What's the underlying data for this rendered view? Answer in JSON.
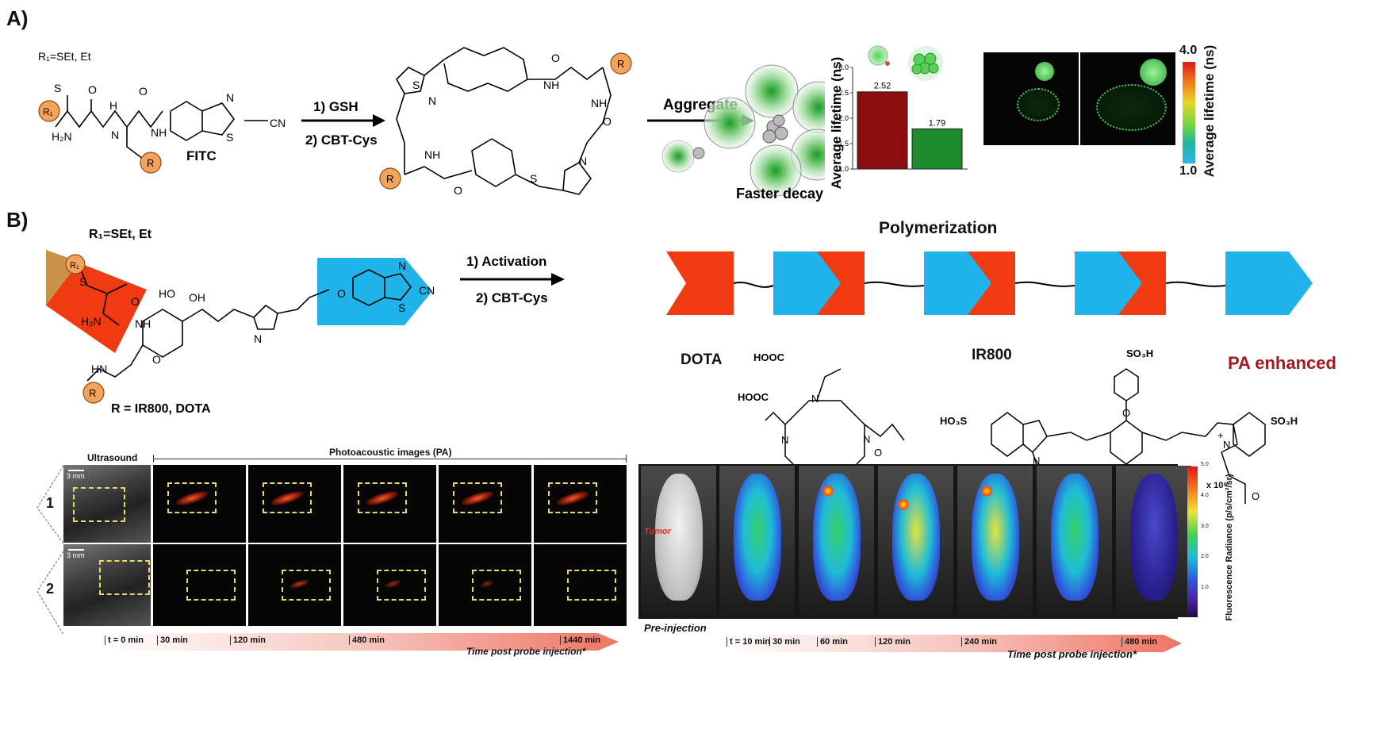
{
  "panelA": {
    "label": "A)",
    "r1_def": "R₁=SEt, Et",
    "fitc": "FITC",
    "step1": "1) GSH",
    "step2": "2) CBT-Cys",
    "aggregate": "Aggregate",
    "faster_decay": "Faster decay",
    "bar_ylabel": "Average lifetime (ns)",
    "colorbar_label": "Average lifetime (ns)",
    "colorbar_max": "4.0",
    "colorbar_min": "1.0",
    "atoms": {
      "R": "R",
      "R1": "R₁",
      "S": "S",
      "N": "N",
      "H": "H",
      "O": "O",
      "NH": "NH",
      "HN": "HN",
      "H2N": "H₂N",
      "CN": "CN"
    }
  },
  "chart_data": {
    "type": "bar",
    "categories": [
      "monomer",
      "aggregate"
    ],
    "values": [
      2.52,
      1.79
    ],
    "value_labels": [
      "2.52",
      "1.79"
    ],
    "colors": [
      "#8b0d0d",
      "#1d8a2b"
    ],
    "ylabel": "Average lifetime (ns)",
    "ylim": [
      1.0,
      3.0
    ],
    "yticks": [
      "1.0",
      "1.5",
      "2.0",
      "2.5",
      "3.0"
    ]
  },
  "panelB": {
    "label": "B)",
    "r1_def": "R₁=SEt, Et",
    "r_def": "R = IR800, DOTA",
    "step1": "1) Activation",
    "step2": "2) CBT-Cys",
    "polymerization": "Polymerization",
    "dota": "DOTA",
    "ir800": "IR800",
    "pa_enhanced": "PA enhanced",
    "atoms": {
      "HOOC": "HOOC",
      "SO3H": "SO₃H",
      "HO3S": "HO₃S",
      "HO": "HO",
      "OH": "OH",
      "H2N": "H₂N",
      "HN": "HN",
      "NH": "NH",
      "N": "N",
      "O": "O",
      "S": "S",
      "CN": "CN",
      "plus": "+"
    },
    "ultrasound": "Ultrasound",
    "pa_images": "Photoacoustic images (PA)",
    "scale": "3 mm",
    "row1": "1",
    "row2": "2",
    "pa_times": [
      "t = 0 min",
      "30 min",
      "120 min",
      "480 min",
      "1440 min"
    ],
    "pa_axis": "Time post probe injection*",
    "pre_injection": "Pre-injection",
    "tumor": "Tumor",
    "fl_times": [
      "t = 10 min",
      "30 min",
      "60 min",
      "120 min",
      "240 min",
      "480 min"
    ],
    "fl_axis": "Time post probe injection*",
    "fl_scale_unit": "x 10⁸",
    "fl_scale_label": "Fluorescence Radiance (p/s/cm²/sr)",
    "fl_scale_ticks": [
      "5.0",
      "4.0",
      "3.0",
      "2.0",
      "1.0"
    ]
  }
}
